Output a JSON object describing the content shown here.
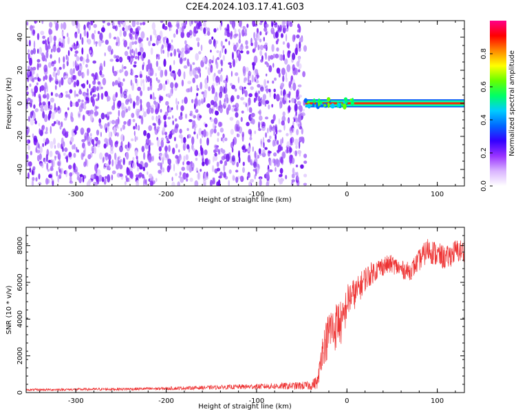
{
  "figure": {
    "title": "C2E4.2024.103.17.41.G03"
  },
  "chart_data": [
    {
      "type": "heatmap",
      "name": "spectrogram",
      "xlabel": "Height of straight line (km)",
      "ylabel": "Frequency (Hz)",
      "xlim": [
        -355,
        130
      ],
      "ylim": [
        -50,
        50
      ],
      "xticks": [
        "-300",
        "-200",
        "-100",
        "0",
        "100"
      ],
      "yticks": [
        "-40",
        "-20",
        "0",
        "20",
        "40"
      ],
      "noise_region_x": [
        -355,
        -46
      ],
      "signal_band_y": [
        -2,
        2
      ],
      "signal_start_x": -46,
      "colorbar": {
        "label": "Normalized spectral amplitude",
        "range": [
          0,
          1
        ],
        "ticks": [
          "0.0",
          "0.2",
          "0.4",
          "0.6",
          "0.8"
        ],
        "colors": [
          "#ffffff",
          "#d9b3ff",
          "#9933ff",
          "#3300ff",
          "#0066ff",
          "#00ccff",
          "#00ff66",
          "#66ff00",
          "#ffff00",
          "#ff8800",
          "#ff0000",
          "#ff0088"
        ]
      }
    },
    {
      "type": "line",
      "name": "snr",
      "xlabel": "Height of straight line (km)",
      "ylabel": "SNR (10 * v/v)",
      "xlim": [
        -355,
        130
      ],
      "ylim": [
        0,
        9000
      ],
      "xticks": [
        "-300",
        "-200",
        "-100",
        "0",
        "100"
      ],
      "yticks": [
        "0",
        "2000",
        "4000",
        "6000",
        "8000"
      ],
      "color": "#ee3333",
      "x": [
        -355,
        -300,
        -250,
        -200,
        -150,
        -100,
        -60,
        -40,
        -32,
        -28,
        -25,
        -22,
        -18,
        -15,
        -10,
        -5,
        0,
        5,
        10,
        20,
        30,
        40,
        50,
        60,
        70,
        80,
        90,
        100,
        110,
        120,
        130
      ],
      "mean": [
        150,
        170,
        190,
        220,
        280,
        330,
        360,
        380,
        600,
        2200,
        2600,
        2900,
        3600,
        3300,
        3900,
        3700,
        4900,
        5300,
        5400,
        6200,
        6600,
        6900,
        7000,
        6700,
        6600,
        7200,
        7800,
        7500,
        7300,
        7700,
        7700
      ],
      "spread": [
        60,
        70,
        80,
        90,
        110,
        150,
        200,
        250,
        400,
        900,
        1000,
        1200,
        1400,
        1300,
        1300,
        1200,
        1000,
        900,
        800,
        700,
        600,
        550,
        500,
        500,
        500,
        600,
        700,
        700,
        650,
        650,
        650
      ]
    }
  ]
}
